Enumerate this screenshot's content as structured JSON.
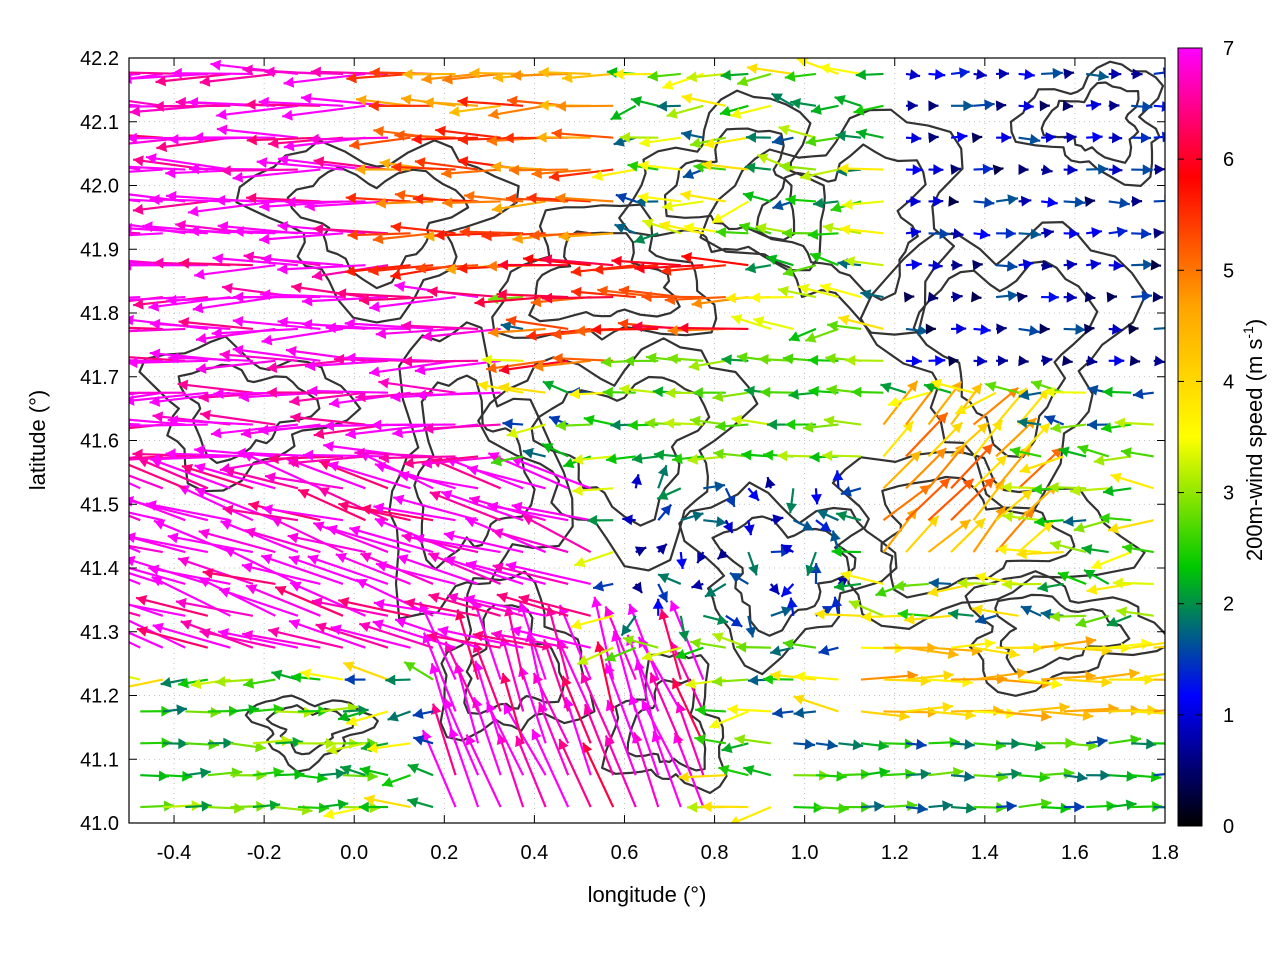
{
  "chart_data": {
    "type": "vector-field",
    "xlabel": "longitude (°)",
    "ylabel": "latitude (°)",
    "colorbar_label": "200m-wind speed (m s",
    "colorbar_label_sup": "-1",
    "colorbar_label_close": ")",
    "xlim": [
      -0.5,
      1.8
    ],
    "ylim": [
      41.0,
      42.2
    ],
    "xticks": [
      "-0.4",
      "-0.2",
      "0.0",
      "0.2",
      "0.4",
      "0.6",
      "0.8",
      "1.0",
      "1.2",
      "1.4",
      "1.6",
      "1.8"
    ],
    "yticks": [
      "41.0",
      "41.1",
      "41.2",
      "41.3",
      "41.4",
      "41.5",
      "41.6",
      "41.7",
      "41.8",
      "41.9",
      "42.0",
      "42.1",
      "42.2"
    ],
    "colorbar_ticks": [
      "0",
      "1",
      "2",
      "3",
      "4",
      "5",
      "6",
      "7"
    ],
    "colorbar_range": [
      0,
      7
    ],
    "grid": true,
    "colorbar_colors": [
      "#000000",
      "#0000ff",
      "#00c800",
      "#ffff00",
      "#ffa500",
      "#ff0000",
      "#ff00ff"
    ],
    "contour_color": "#333333",
    "vector_regions": [
      {
        "lon": [
          -0.5,
          0.35
        ],
        "lat": [
          41.55,
          42.2
        ],
        "speed": 7.0,
        "direction": "west"
      },
      {
        "lon": [
          -0.5,
          0.55
        ],
        "lat": [
          41.25,
          41.55
        ],
        "speed": 7.0,
        "direction": "west-northwest"
      },
      {
        "lon": [
          0.1,
          0.6
        ],
        "lat": [
          41.85,
          42.2
        ],
        "speed": 5.0,
        "direction": "west"
      },
      {
        "lon": [
          0.4,
          0.9
        ],
        "lat": [
          41.7,
          41.9
        ],
        "speed": 5.5,
        "direction": "west"
      },
      {
        "lon": [
          0.2,
          0.8
        ],
        "lat": [
          41.0,
          41.25
        ],
        "speed": 6.8,
        "direction": "north-northwest"
      },
      {
        "lon": [
          0.6,
          1.2
        ],
        "lat": [
          41.55,
          41.75
        ],
        "speed": 2.6,
        "direction": "west"
      },
      {
        "lon": [
          1.2,
          1.8
        ],
        "lat": [
          41.7,
          42.2
        ],
        "speed": 1.0,
        "direction": "east"
      },
      {
        "lon": [
          0.95,
          1.8
        ],
        "lat": [
          41.0,
          41.15
        ],
        "speed": 2.2,
        "direction": "east"
      },
      {
        "lon": [
          1.1,
          1.8
        ],
        "lat": [
          41.15,
          41.3
        ],
        "speed": 4.2,
        "direction": "east"
      },
      {
        "lon": [
          1.15,
          1.5
        ],
        "lat": [
          41.4,
          41.65
        ],
        "speed": 4.5,
        "direction": "northeast"
      },
      {
        "lon": [
          0.6,
          1.1
        ],
        "lat": [
          41.3,
          41.55
        ],
        "speed": 1.3,
        "direction": "variable"
      },
      {
        "lon": [
          -0.5,
          0.0
        ],
        "lat": [
          41.0,
          41.2
        ],
        "speed": 2.5,
        "direction": "east"
      }
    ]
  }
}
